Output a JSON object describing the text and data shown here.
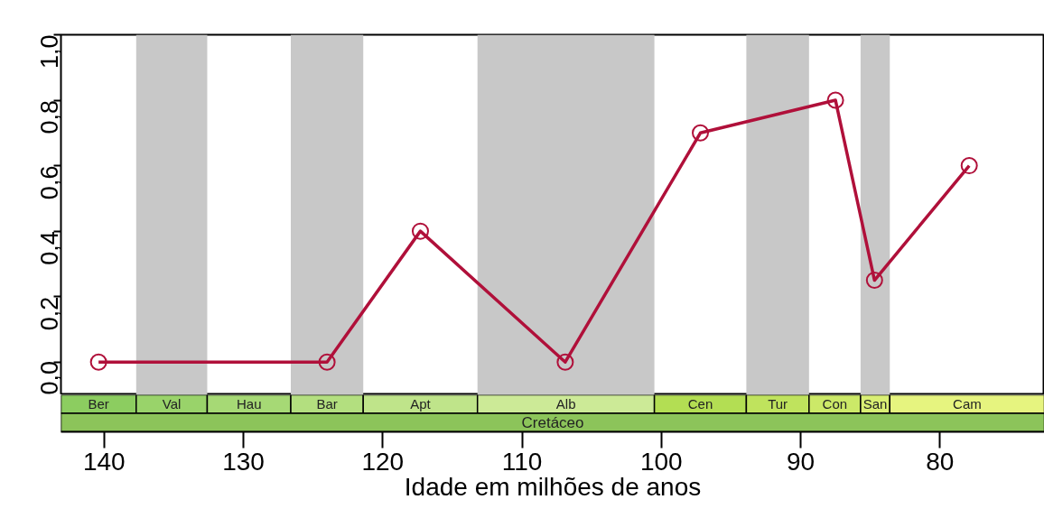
{
  "chart_data": {
    "type": "line",
    "xlabel": "Idade em milhões de anos",
    "x": [
      140.4,
      124.0,
      117.3,
      106.9,
      97.2,
      87.5,
      84.7,
      77.9
    ],
    "series": [
      {
        "color": "#b0103a",
        "values": [
          0,
          0,
          0.4,
          0,
          0.7,
          0.8,
          0.25,
          0.6
        ]
      }
    ],
    "marker": "circle",
    "line_style": "solid",
    "grid": false,
    "xlim": [
      143.1,
      72.5
    ],
    "xticks": [
      140,
      130,
      120,
      110,
      100,
      90,
      80
    ],
    "annotations": [
      "Ber",
      "Val",
      "Hau",
      "Bar",
      "Apt",
      "Alb",
      "Cen",
      "Tur",
      "Con",
      "San",
      "Cam",
      "Cretáceo"
    ],
    "ylim": [
      -0.1,
      1.0
    ],
    "yticks": [
      {
        "value": 0,
        "label": "0,0"
      },
      {
        "value": 0.2,
        "label": "0,2"
      },
      {
        "value": 0.4,
        "label": "0,4"
      },
      {
        "value": 0.6,
        "label": "0,6"
      },
      {
        "value": 0.8,
        "label": "0,8"
      },
      {
        "value": 1.0,
        "label": "1,0"
      }
    ],
    "bands": [
      {
        "axis": "x",
        "from": 137.7,
        "to": 132.6,
        "color": "#c8c8c8"
      },
      {
        "axis": "x",
        "from": 126.6,
        "to": 121.4,
        "color": "#c8c8c8"
      },
      {
        "axis": "x",
        "from": 113.2,
        "to": 100.5,
        "color": "#c8c8c8"
      },
      {
        "axis": "x",
        "from": 93.9,
        "to": 89.4,
        "color": "#c8c8c8"
      },
      {
        "axis": "x",
        "from": 85.7,
        "to": 83.6,
        "color": "#c8c8c8"
      }
    ]
  }
}
